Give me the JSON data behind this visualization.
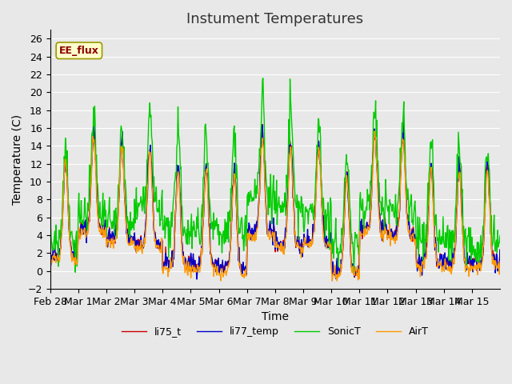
{
  "title": "Instument Temperatures",
  "xlabel": "Time",
  "ylabel": "Temperature (C)",
  "ylim": [
    -2,
    27
  ],
  "yticks": [
    -2,
    0,
    2,
    4,
    6,
    8,
    10,
    12,
    14,
    16,
    18,
    20,
    22,
    24,
    26
  ],
  "xtick_labels": [
    "Feb 28",
    "Mar 1",
    "Mar 2",
    "Mar 3",
    "Mar 4",
    "Mar 5",
    "Mar 6",
    "Mar 7",
    "Mar 8",
    "Mar 9",
    "Mar 10",
    "Mar 11",
    "Mar 12",
    "Mar 13",
    "Mar 14",
    "Mar 15"
  ],
  "xtick_positions": [
    0,
    1,
    2,
    3,
    4,
    5,
    6,
    7,
    8,
    9,
    10,
    11,
    12,
    13,
    14,
    15
  ],
  "series_colors": [
    "#cc0000",
    "#0000cc",
    "#00cc00",
    "#ff9900"
  ],
  "series_names": [
    "li75_t",
    "li77_temp",
    "SonicT",
    "AirT"
  ],
  "annotation_text": "EE_flux",
  "bg_color": "#e8e8e8",
  "n_days": 16,
  "points_per_day": 48,
  "title_fontsize": 13,
  "axis_label_fontsize": 10,
  "tick_fontsize": 9
}
